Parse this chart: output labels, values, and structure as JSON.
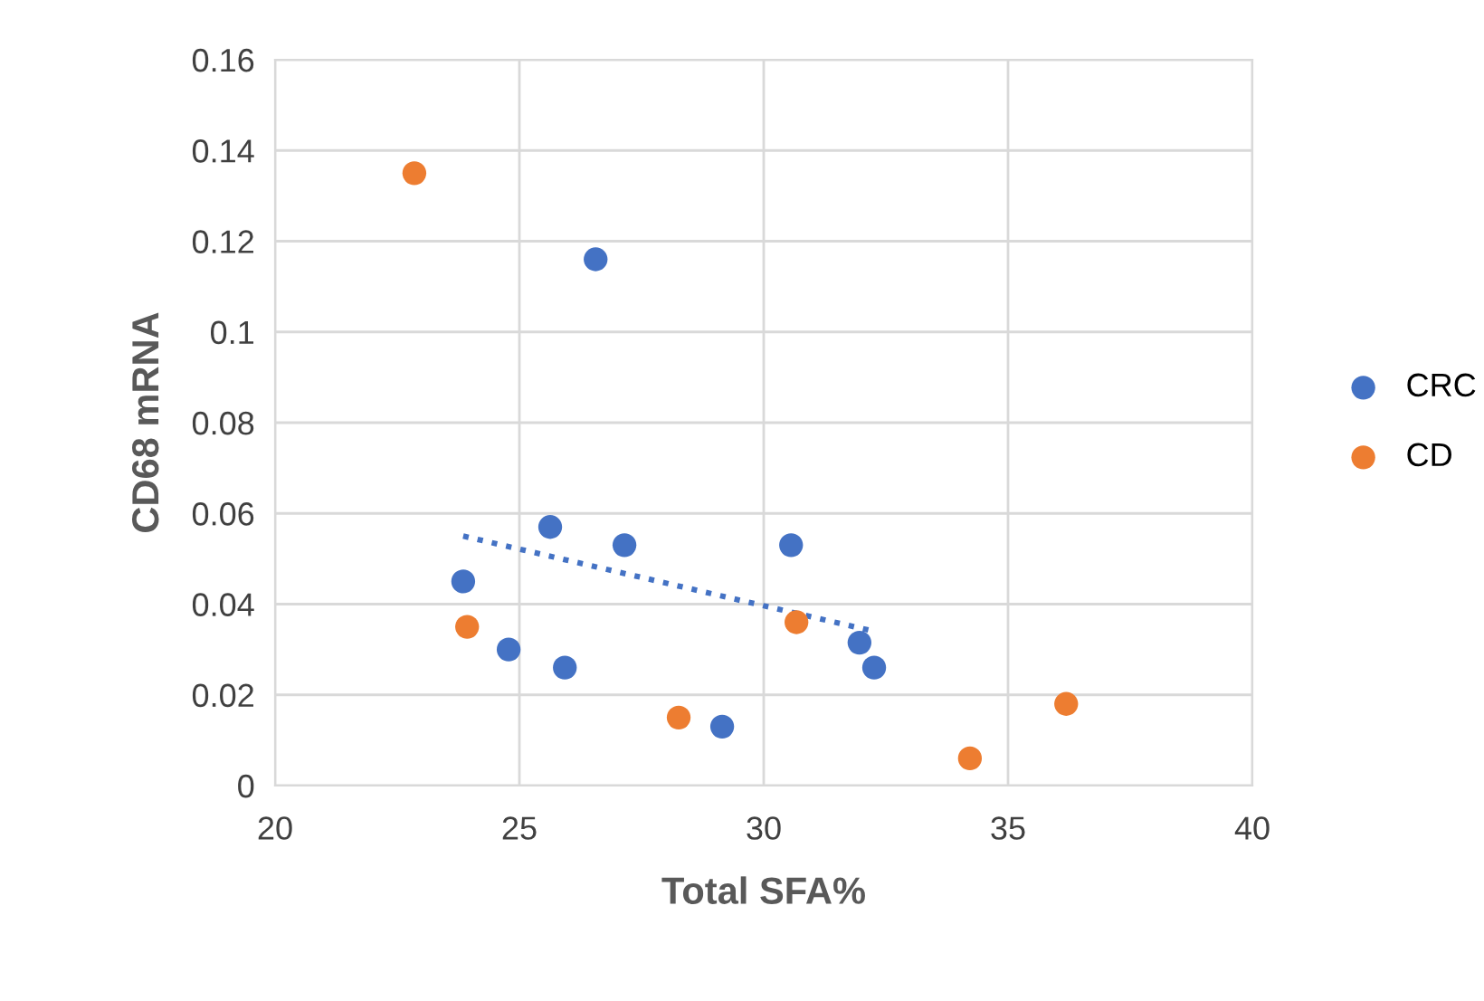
{
  "chart_data": {
    "type": "scatter",
    "xlabel": "Total SFA%",
    "ylabel": "CD68 mRNA",
    "xlim": [
      20,
      40
    ],
    "xticks": [
      20,
      25,
      30,
      35,
      40
    ],
    "ylim": [
      0,
      0.16
    ],
    "yticks": [
      0,
      0.02,
      0.04,
      0.06,
      0.08,
      {
        "value": 0.1,
        "label": "0.1"
      },
      0.12,
      0.14,
      0.16
    ],
    "grid": true,
    "legend": "right",
    "marker": "circle",
    "series": [
      {
        "name": "CRC",
        "color": "#4472c4",
        "x": [
          26.56,
          25.63,
          27.15,
          30.56,
          23.85,
          24.78,
          25.93,
          29.15,
          31.96,
          32.26
        ],
        "values": [
          0.116,
          0.057,
          0.053,
          0.053,
          0.045,
          0.03,
          0.026,
          0.013,
          0.0315,
          0.026
        ]
      },
      {
        "name": "CD",
        "color": "#ed7d31",
        "x": [
          22.85,
          23.93,
          28.26,
          30.67,
          34.22,
          36.19
        ],
        "values": [
          0.135,
          0.035,
          0.015,
          0.036,
          0.006,
          0.018
        ]
      },
      {
        "type": "line",
        "color": "#4472c4",
        "line_style": "dotted",
        "marker": "none",
        "x": [
          23.85,
          32.26
        ],
        "values": [
          0.055,
          0.034
        ]
      }
    ]
  }
}
